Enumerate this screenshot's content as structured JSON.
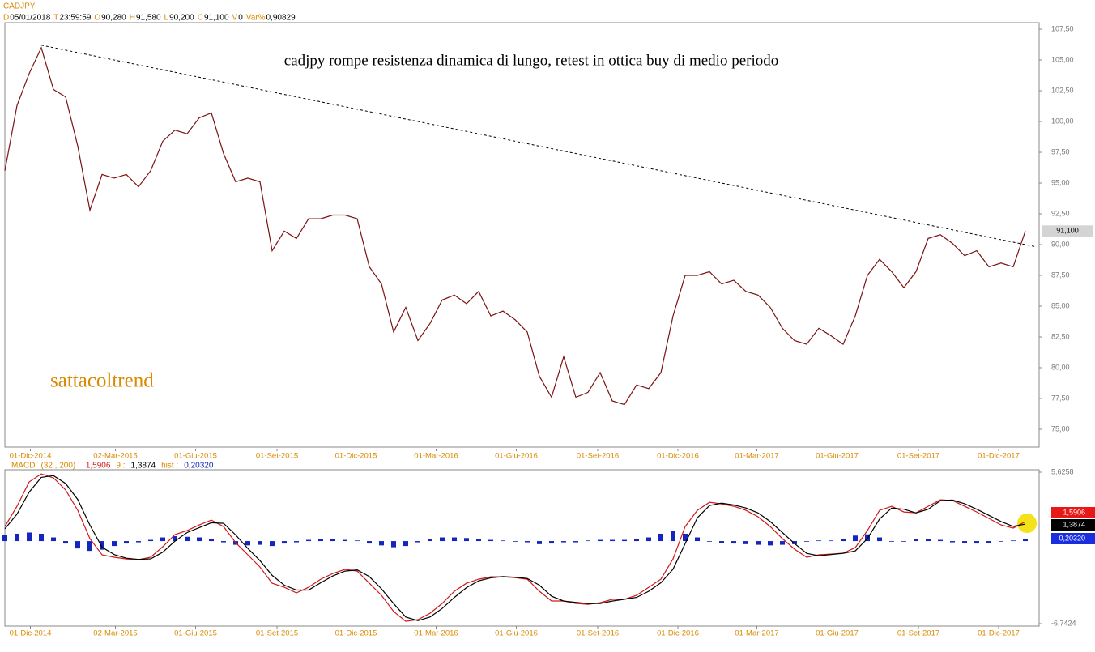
{
  "chart_data": {
    "type": "line",
    "symbol": "CADJPY",
    "header_fields": [
      {
        "key": "D",
        "value": "05/01/2018"
      },
      {
        "key": "T",
        "value": "23:59:59"
      },
      {
        "key": "O",
        "value": "90,280"
      },
      {
        "key": "H",
        "value": "91,580"
      },
      {
        "key": "L",
        "value": "90,200"
      },
      {
        "key": "C",
        "value": "91,100"
      },
      {
        "key": "V",
        "value": "0"
      },
      {
        "key": "Var%",
        "value": "0,90829"
      }
    ],
    "title": "cadjpy rompe resistenza dinamica di lungo, retest in ottica buy di medio periodo",
    "watermark": "sattacoltrend",
    "color": "#7a1212",
    "values": [
      96.0,
      101.3,
      103.9,
      106.0,
      102.6,
      102.0,
      98.0,
      92.8,
      95.7,
      95.4,
      95.7,
      94.7,
      96.0,
      98.4,
      99.3,
      99.0,
      100.3,
      100.7,
      97.4,
      95.1,
      95.4,
      95.1,
      89.5,
      91.1,
      90.5,
      92.1,
      92.1,
      92.4,
      92.4,
      92.1,
      88.2,
      86.8,
      82.9,
      84.9,
      82.2,
      83.6,
      85.5,
      85.9,
      85.2,
      86.2,
      84.2,
      84.6,
      83.9,
      82.9,
      79.3,
      77.6,
      80.9,
      77.6,
      78.0,
      79.6,
      77.3,
      77.0,
      78.6,
      78.3,
      79.6,
      84.2,
      87.5,
      87.5,
      87.8,
      86.8,
      87.1,
      86.2,
      85.9,
      84.9,
      83.2,
      82.2,
      81.9,
      83.2,
      82.6,
      81.9,
      84.2,
      87.5,
      88.8,
      87.8,
      86.5,
      87.8,
      90.5,
      90.8,
      90.1,
      89.1,
      89.5,
      88.2,
      88.5,
      88.2,
      91.1
    ],
    "last_price": {
      "value": 91.1,
      "label": "91,100"
    },
    "trendline": {
      "x": [
        3,
        85
      ],
      "values": [
        106.2,
        89.8
      ]
    },
    "xlim": [
      0,
      85
    ],
    "xticks": [
      {
        "value": 2.1,
        "label": "01-Dic-2014"
      },
      {
        "value": 9.1,
        "label": "02-Mar-2015"
      },
      {
        "value": 15.7,
        "label": "01-Giu-2015"
      },
      {
        "value": 22.4,
        "label": "01-Set-2015"
      },
      {
        "value": 28.9,
        "label": "01-Dic-2015"
      },
      {
        "value": 35.5,
        "label": "01-Mar-2016"
      },
      {
        "value": 42.1,
        "label": "01-Giu-2016"
      },
      {
        "value": 48.8,
        "label": "01-Set-2016"
      },
      {
        "value": 55.4,
        "label": "01-Dic-2016"
      },
      {
        "value": 61.9,
        "label": "01-Mar-2017"
      },
      {
        "value": 68.5,
        "label": "01-Giu-2017"
      },
      {
        "value": 75.2,
        "label": "01-Set-2017"
      },
      {
        "value": 81.8,
        "label": "01-Dic-2017"
      }
    ],
    "ylim": [
      73.55,
      108.03
    ],
    "yticks": [
      {
        "value": 75,
        "label": "75,00"
      },
      {
        "value": 77.5,
        "label": "77,50"
      },
      {
        "value": 80,
        "label": "80,00"
      },
      {
        "value": 82.5,
        "label": "82,50"
      },
      {
        "value": 85,
        "label": "85,00"
      },
      {
        "value": 87.5,
        "label": "87,50"
      },
      {
        "value": 90,
        "label": "90,00"
      },
      {
        "value": 92.5,
        "label": "92,50"
      },
      {
        "value": 95,
        "label": "95,00"
      },
      {
        "value": 97.5,
        "label": "97,50"
      },
      {
        "value": 100,
        "label": "100,00"
      },
      {
        "value": 102.5,
        "label": "102,50"
      },
      {
        "value": 105,
        "label": "105,00"
      },
      {
        "value": 107.5,
        "label": "107,50"
      }
    ],
    "macd": {
      "name": "MACD",
      "params": "(32 , 200) :",
      "signal_label": "9 :",
      "hist_label": "hist :",
      "ylim": [
        -6.7424,
        5.6258
      ],
      "yticks": [
        {
          "value": 5.6258,
          "label": "5,6258"
        },
        {
          "value": -6.7424,
          "label": "-6,7424"
        }
      ],
      "series": [
        {
          "name": "macd",
          "color": "#d01818",
          "last_label": "1,5906",
          "values": [
            1.19,
            2.84,
            4.83,
            5.49,
            5.16,
            4.17,
            2.51,
            0.2,
            -1.12,
            -1.32,
            -1.46,
            -1.52,
            -1.32,
            -0.46,
            0.53,
            0.86,
            1.32,
            1.72,
            1.19,
            -0.13,
            -1.12,
            -2.12,
            -3.44,
            -3.77,
            -4.23,
            -3.77,
            -3.11,
            -2.65,
            -2.31,
            -2.45,
            -3.44,
            -4.43,
            -5.75,
            -6.55,
            -6.42,
            -5.89,
            -5.09,
            -4.1,
            -3.44,
            -3.11,
            -2.91,
            -2.91,
            -2.98,
            -3.11,
            -4.1,
            -4.89,
            -4.89,
            -5.09,
            -5.16,
            -5.03,
            -4.76,
            -4.76,
            -4.43,
            -3.77,
            -3.11,
            -1.46,
            1.19,
            2.51,
            3.17,
            3.04,
            2.84,
            2.51,
            1.98,
            1.19,
            0.2,
            -0.66,
            -1.32,
            -1.12,
            -1.06,
            -0.99,
            -0.53,
            0.86,
            2.51,
            2.84,
            2.38,
            2.31,
            2.84,
            3.37,
            3.31,
            2.84,
            2.38,
            1.85,
            1.32,
            1.06,
            1.5906
          ]
        },
        {
          "name": "signal",
          "color": "#000000",
          "last_label": "1,3874",
          "values": [
            1.0,
            2.2,
            4.0,
            5.2,
            5.35,
            4.7,
            3.4,
            1.3,
            -0.5,
            -1.1,
            -1.4,
            -1.5,
            -1.45,
            -0.9,
            0.0,
            0.7,
            1.1,
            1.5,
            1.45,
            0.5,
            -0.6,
            -1.6,
            -2.8,
            -3.6,
            -4.0,
            -4.0,
            -3.4,
            -2.85,
            -2.45,
            -2.35,
            -2.9,
            -3.9,
            -5.1,
            -6.2,
            -6.5,
            -6.2,
            -5.5,
            -4.6,
            -3.8,
            -3.25,
            -3.0,
            -2.9,
            -2.95,
            -3.05,
            -3.6,
            -4.5,
            -4.9,
            -5.0,
            -5.1,
            -5.1,
            -4.9,
            -4.75,
            -4.6,
            -4.1,
            -3.4,
            -2.3,
            -0.2,
            1.9,
            2.9,
            3.1,
            2.95,
            2.7,
            2.3,
            1.6,
            0.7,
            -0.2,
            -1.0,
            -1.2,
            -1.1,
            -1.0,
            -0.8,
            0.2,
            1.8,
            2.7,
            2.6,
            2.3,
            2.6,
            3.3,
            3.35,
            3.05,
            2.6,
            2.1,
            1.6,
            1.2,
            1.3874
          ]
        },
        {
          "name": "hist",
          "color": "#1426c0",
          "last_label": "0,20320",
          "values": [
            0.5,
            0.6,
            0.7,
            0.6,
            0.3,
            -0.2,
            -0.6,
            -0.8,
            -0.7,
            -0.4,
            -0.2,
            -0.1,
            0.1,
            0.3,
            0.4,
            0.35,
            0.3,
            0.2,
            -0.1,
            -0.3,
            -0.35,
            -0.3,
            -0.4,
            -0.2,
            -0.1,
            0.1,
            0.2,
            0.15,
            0.1,
            0.05,
            -0.2,
            -0.35,
            -0.5,
            -0.4,
            -0.1,
            0.2,
            0.3,
            0.3,
            0.25,
            0.15,
            0.1,
            0.05,
            -0.05,
            -0.1,
            -0.25,
            -0.2,
            -0.1,
            -0.1,
            0.05,
            0.1,
            0.1,
            0.1,
            0.15,
            0.3,
            0.6,
            0.85,
            0.6,
            0.3,
            -0.05,
            -0.15,
            -0.2,
            -0.25,
            -0.3,
            -0.35,
            -0.3,
            -0.25,
            -0.05,
            0.05,
            0.05,
            0.2,
            0.45,
            0.55,
            0.3,
            -0.05,
            -0.05,
            0.15,
            0.2,
            0.1,
            -0.1,
            -0.15,
            -0.2,
            -0.15,
            -0.05,
            0.05,
            0.2032
          ]
        }
      ]
    }
  }
}
